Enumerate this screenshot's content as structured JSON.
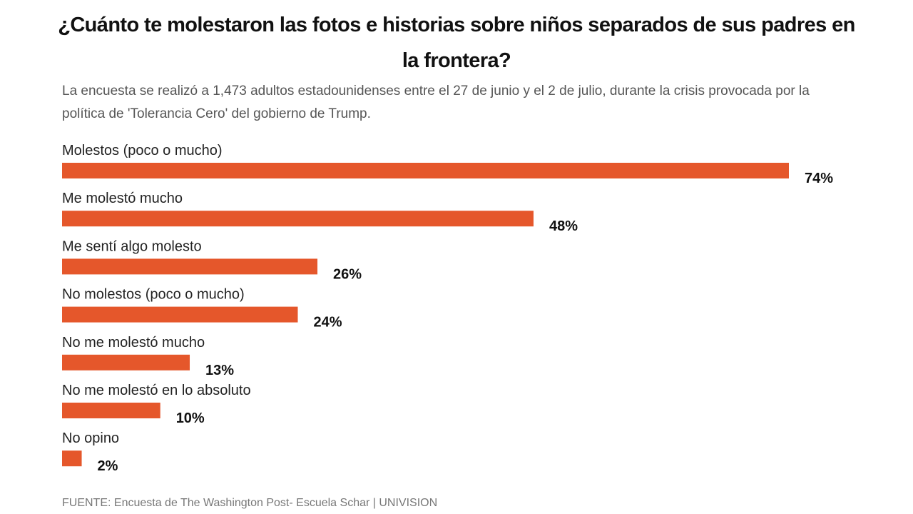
{
  "chart_data": {
    "type": "bar",
    "orientation": "horizontal",
    "title": "¿Cuánto te molestaron las fotos e historias sobre niños separados de sus padres en la frontera?",
    "subtitle": "La encuesta se realizó a 1,473 adultos estadounidenses entre el 27 de junio y el 2 de julio, durante la crisis provocada por la política de 'Tolerancia Cero' del gobierno de Trump.",
    "categories": [
      "Molestos (poco o mucho)",
      "Me molestó mucho",
      "Me sentí algo molesto",
      "No molestos (poco o mucho)",
      "No me molestó mucho",
      "No me molestó en lo absoluto",
      "No opino"
    ],
    "values": [
      74,
      48,
      26,
      24,
      13,
      10,
      2
    ],
    "value_labels": [
      "74%",
      "48%",
      "26%",
      "24%",
      "13%",
      "10%",
      "2%"
    ],
    "unit": "%",
    "xlabel": "",
    "ylabel": "",
    "xlim": [
      0,
      74
    ],
    "grid": false,
    "legend": "none",
    "bar_color": "#E5572B",
    "source": "FUENTE: Encuesta de The Washington Post- Escuela Schar | UNIVISION"
  }
}
